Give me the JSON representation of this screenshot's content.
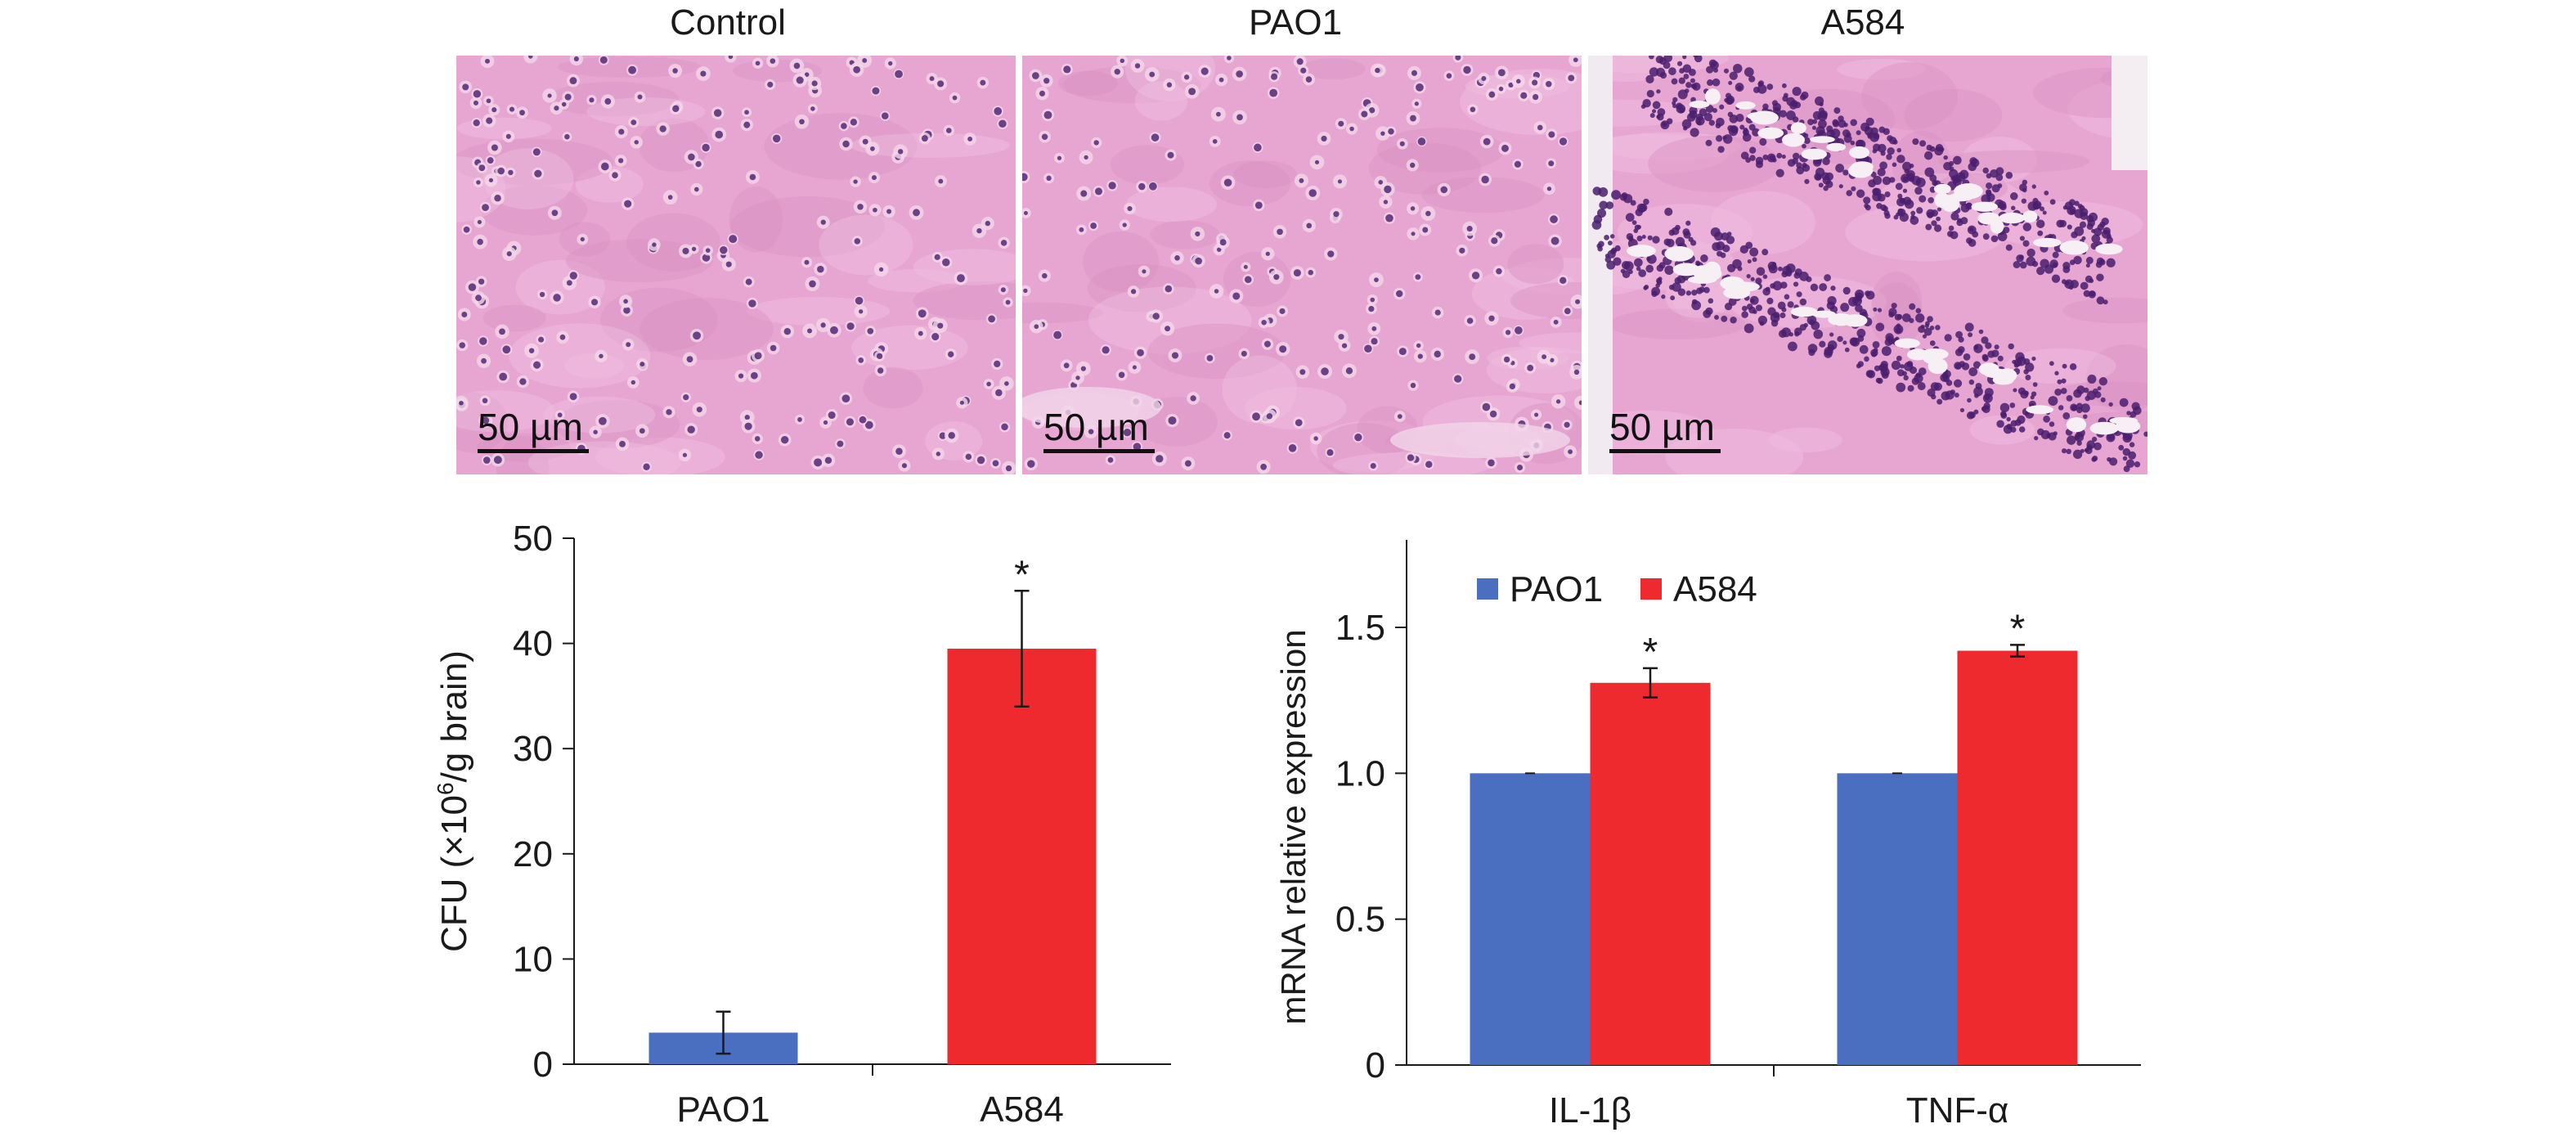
{
  "panels": [
    {
      "title": "Control",
      "scale_label": "50 µm"
    },
    {
      "title": "PAO1",
      "scale_label": "50 µm"
    },
    {
      "title": "A584",
      "scale_label": "50 µm"
    }
  ],
  "colors": {
    "pao1": "#4a6fc1",
    "a584": "#ee2a2e",
    "tissue_pink": "#e7a6d2",
    "nuclei_purple": "#4a1e6e"
  },
  "chart_data": [
    {
      "type": "bar",
      "categories": [
        "PAO1",
        "A584"
      ],
      "values": [
        3,
        39.5
      ],
      "errors": [
        2,
        5.5
      ],
      "significance": [
        "",
        "*"
      ],
      "ylabel": "CFU (×10⁶/g brain)",
      "ylabel_parts": {
        "before": "CFU (×10",
        "sup": "6",
        "after": "/g brain)"
      },
      "ylim": [
        0,
        50
      ],
      "yticks": [
        "0",
        "10",
        "20",
        "30",
        "40",
        "50"
      ],
      "grid": false
    },
    {
      "type": "bar",
      "categories": [
        "IL-1β",
        "TNF-α"
      ],
      "series": [
        {
          "name": "PAO1",
          "values": [
            1.0,
            1.0
          ],
          "errors": [
            0.0,
            0.0
          ],
          "significance": [
            "",
            ""
          ]
        },
        {
          "name": "A584",
          "values": [
            1.31,
            1.42
          ],
          "errors": [
            0.05,
            0.02
          ],
          "significance": [
            "*",
            "*"
          ]
        }
      ],
      "ylabel": "mRNA relative expression",
      "ylim": [
        0,
        1.8
      ],
      "yticks": [
        "0",
        "0.5",
        "1.0",
        "1.5"
      ],
      "legend": "top-left",
      "grid": false
    }
  ]
}
